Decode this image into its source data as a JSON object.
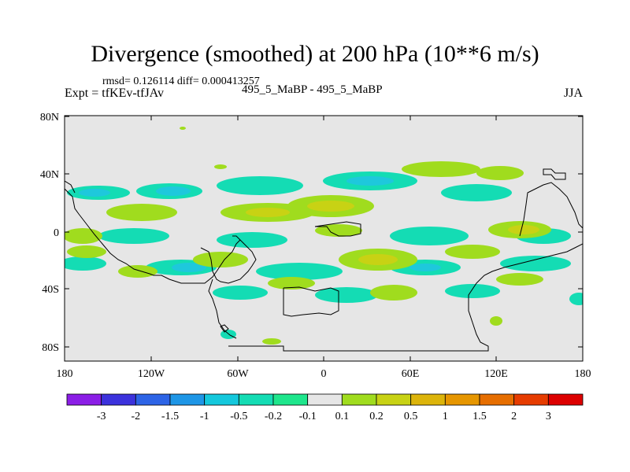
{
  "title": "Divergence (smoothed) at 200 hPa (10**6 m/s)",
  "stats_text": "rmsd= 0.126114 diff= 0.000413257",
  "left_label": "Expt = tfKEv-tfJAv",
  "center_label": "495_5_MaBP - 495_5_MaBP",
  "right_label": "JJA",
  "lat_ticks": [
    "80N",
    "40N",
    "0",
    "40S",
    "80S"
  ],
  "lon_ticks": [
    "180",
    "120W",
    "60W",
    "0",
    "60E",
    "120E",
    "180"
  ],
  "colorbar": {
    "colors": [
      "#8b1ee6",
      "#3c32dc",
      "#2d64e6",
      "#1e96e6",
      "#14c8dc",
      "#14dcb4",
      "#1ee68c",
      "#e6e6e6",
      "#a0dc1e",
      "#c8d214",
      "#dcb40a",
      "#e69600",
      "#e66e00",
      "#e63c00",
      "#dc0000"
    ],
    "labels": [
      "-3",
      "-2",
      "-1.5",
      "-1",
      "-0.5",
      "-0.2",
      "-0.1",
      "0.1",
      "0.2",
      "0.5",
      "1",
      "1.5",
      "2",
      "3"
    ]
  }
}
